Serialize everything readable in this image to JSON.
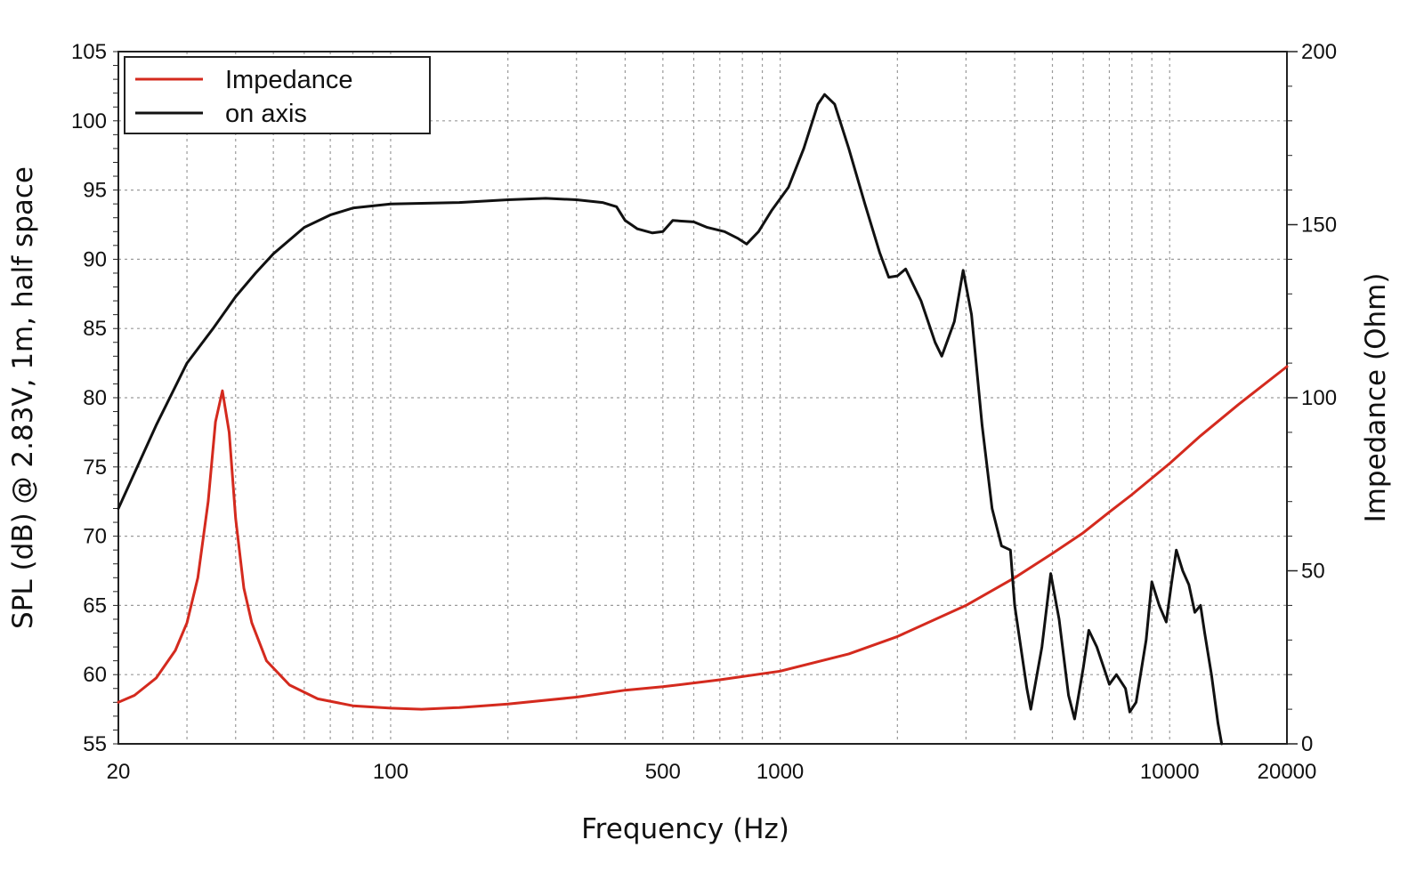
{
  "chart_data": {
    "type": "line",
    "title": "",
    "xlabel": "Frequency (Hz)",
    "ylabel": "SPL (dB) @ 2.83V, 1m, half space",
    "y2label": "Impedance (Ohm)",
    "x_scale": "log",
    "xlim": [
      20,
      20000
    ],
    "ylim": [
      55,
      105
    ],
    "y2lim": [
      0,
      200
    ],
    "x_ticks": [
      "20",
      "100",
      "500",
      "1000",
      "10000",
      "20000"
    ],
    "y_ticks": [
      "55",
      "60",
      "65",
      "70",
      "75",
      "80",
      "85",
      "90",
      "95",
      "100",
      "105"
    ],
    "y2_ticks": [
      "0",
      "50",
      "100",
      "150",
      "200"
    ],
    "grid": true,
    "legend_position": "top-left",
    "colors": {
      "impedance": "#d42a1e",
      "on_axis": "#111111",
      "grid": "#9a9a9a"
    },
    "series": [
      {
        "name": "Impedance",
        "axis": "right",
        "points": [
          [
            20,
            12
          ],
          [
            22,
            14
          ],
          [
            25,
            19
          ],
          [
            28,
            27
          ],
          [
            30,
            35
          ],
          [
            32,
            48
          ],
          [
            34,
            70
          ],
          [
            35.5,
            93
          ],
          [
            37,
            102
          ],
          [
            38.5,
            90
          ],
          [
            40,
            65
          ],
          [
            42,
            45
          ],
          [
            44,
            35
          ],
          [
            48,
            24
          ],
          [
            55,
            17
          ],
          [
            65,
            13
          ],
          [
            80,
            11
          ],
          [
            100,
            10.3
          ],
          [
            120,
            10
          ],
          [
            150,
            10.5
          ],
          [
            200,
            11.5
          ],
          [
            300,
            13.5
          ],
          [
            400,
            15.5
          ],
          [
            500,
            16.5
          ],
          [
            700,
            18.5
          ],
          [
            1000,
            21
          ],
          [
            1500,
            26
          ],
          [
            2000,
            31
          ],
          [
            3000,
            40
          ],
          [
            4000,
            48
          ],
          [
            5000,
            55
          ],
          [
            6000,
            61
          ],
          [
            7000,
            67
          ],
          [
            8000,
            72
          ],
          [
            10000,
            81
          ],
          [
            12000,
            89
          ],
          [
            15000,
            98
          ],
          [
            20000,
            109
          ]
        ]
      },
      {
        "name": "on axis",
        "axis": "left",
        "points": [
          [
            20,
            72
          ],
          [
            25,
            78
          ],
          [
            30,
            82.5
          ],
          [
            35,
            85
          ],
          [
            40,
            87.3
          ],
          [
            45,
            89
          ],
          [
            50,
            90.4
          ],
          [
            60,
            92.3
          ],
          [
            70,
            93.2
          ],
          [
            80,
            93.7
          ],
          [
            100,
            94
          ],
          [
            150,
            94.1
          ],
          [
            200,
            94.3
          ],
          [
            250,
            94.4
          ],
          [
            300,
            94.3
          ],
          [
            350,
            94.1
          ],
          [
            380,
            93.8
          ],
          [
            400,
            92.8
          ],
          [
            430,
            92.2
          ],
          [
            470,
            91.9
          ],
          [
            500,
            92
          ],
          [
            530,
            92.8
          ],
          [
            600,
            92.7
          ],
          [
            650,
            92.3
          ],
          [
            720,
            92
          ],
          [
            780,
            91.5
          ],
          [
            820,
            91.1
          ],
          [
            880,
            92
          ],
          [
            950,
            93.5
          ],
          [
            1050,
            95.2
          ],
          [
            1150,
            98
          ],
          [
            1250,
            101.2
          ],
          [
            1300,
            101.9
          ],
          [
            1380,
            101.2
          ],
          [
            1500,
            98
          ],
          [
            1650,
            94
          ],
          [
            1800,
            90.5
          ],
          [
            1900,
            88.7
          ],
          [
            2000,
            88.8
          ],
          [
            2100,
            89.3
          ],
          [
            2300,
            87
          ],
          [
            2500,
            84
          ],
          [
            2600,
            83
          ],
          [
            2800,
            85.5
          ],
          [
            2950,
            89.2
          ],
          [
            3100,
            86
          ],
          [
            3300,
            78
          ],
          [
            3500,
            72
          ],
          [
            3700,
            69.3
          ],
          [
            3900,
            69
          ],
          [
            4000,
            65
          ],
          [
            4300,
            59
          ],
          [
            4400,
            57.5
          ],
          [
            4700,
            62
          ],
          [
            4950,
            67.3
          ],
          [
            5200,
            64
          ],
          [
            5500,
            58.5
          ],
          [
            5700,
            56.8
          ],
          [
            6000,
            60.5
          ],
          [
            6200,
            63.2
          ],
          [
            6500,
            62
          ],
          [
            7000,
            59.3
          ],
          [
            7300,
            60
          ],
          [
            7700,
            59
          ],
          [
            7900,
            57.3
          ],
          [
            8200,
            58
          ],
          [
            8700,
            62.5
          ],
          [
            9000,
            66.7
          ],
          [
            9400,
            65
          ],
          [
            9800,
            63.8
          ],
          [
            10100,
            66.5
          ],
          [
            10400,
            69
          ],
          [
            10800,
            67.5
          ],
          [
            11200,
            66.5
          ],
          [
            11600,
            64.5
          ],
          [
            12000,
            65
          ],
          [
            12300,
            63
          ],
          [
            12800,
            60
          ],
          [
            13300,
            56.5
          ],
          [
            13600,
            55
          ]
        ]
      }
    ]
  }
}
